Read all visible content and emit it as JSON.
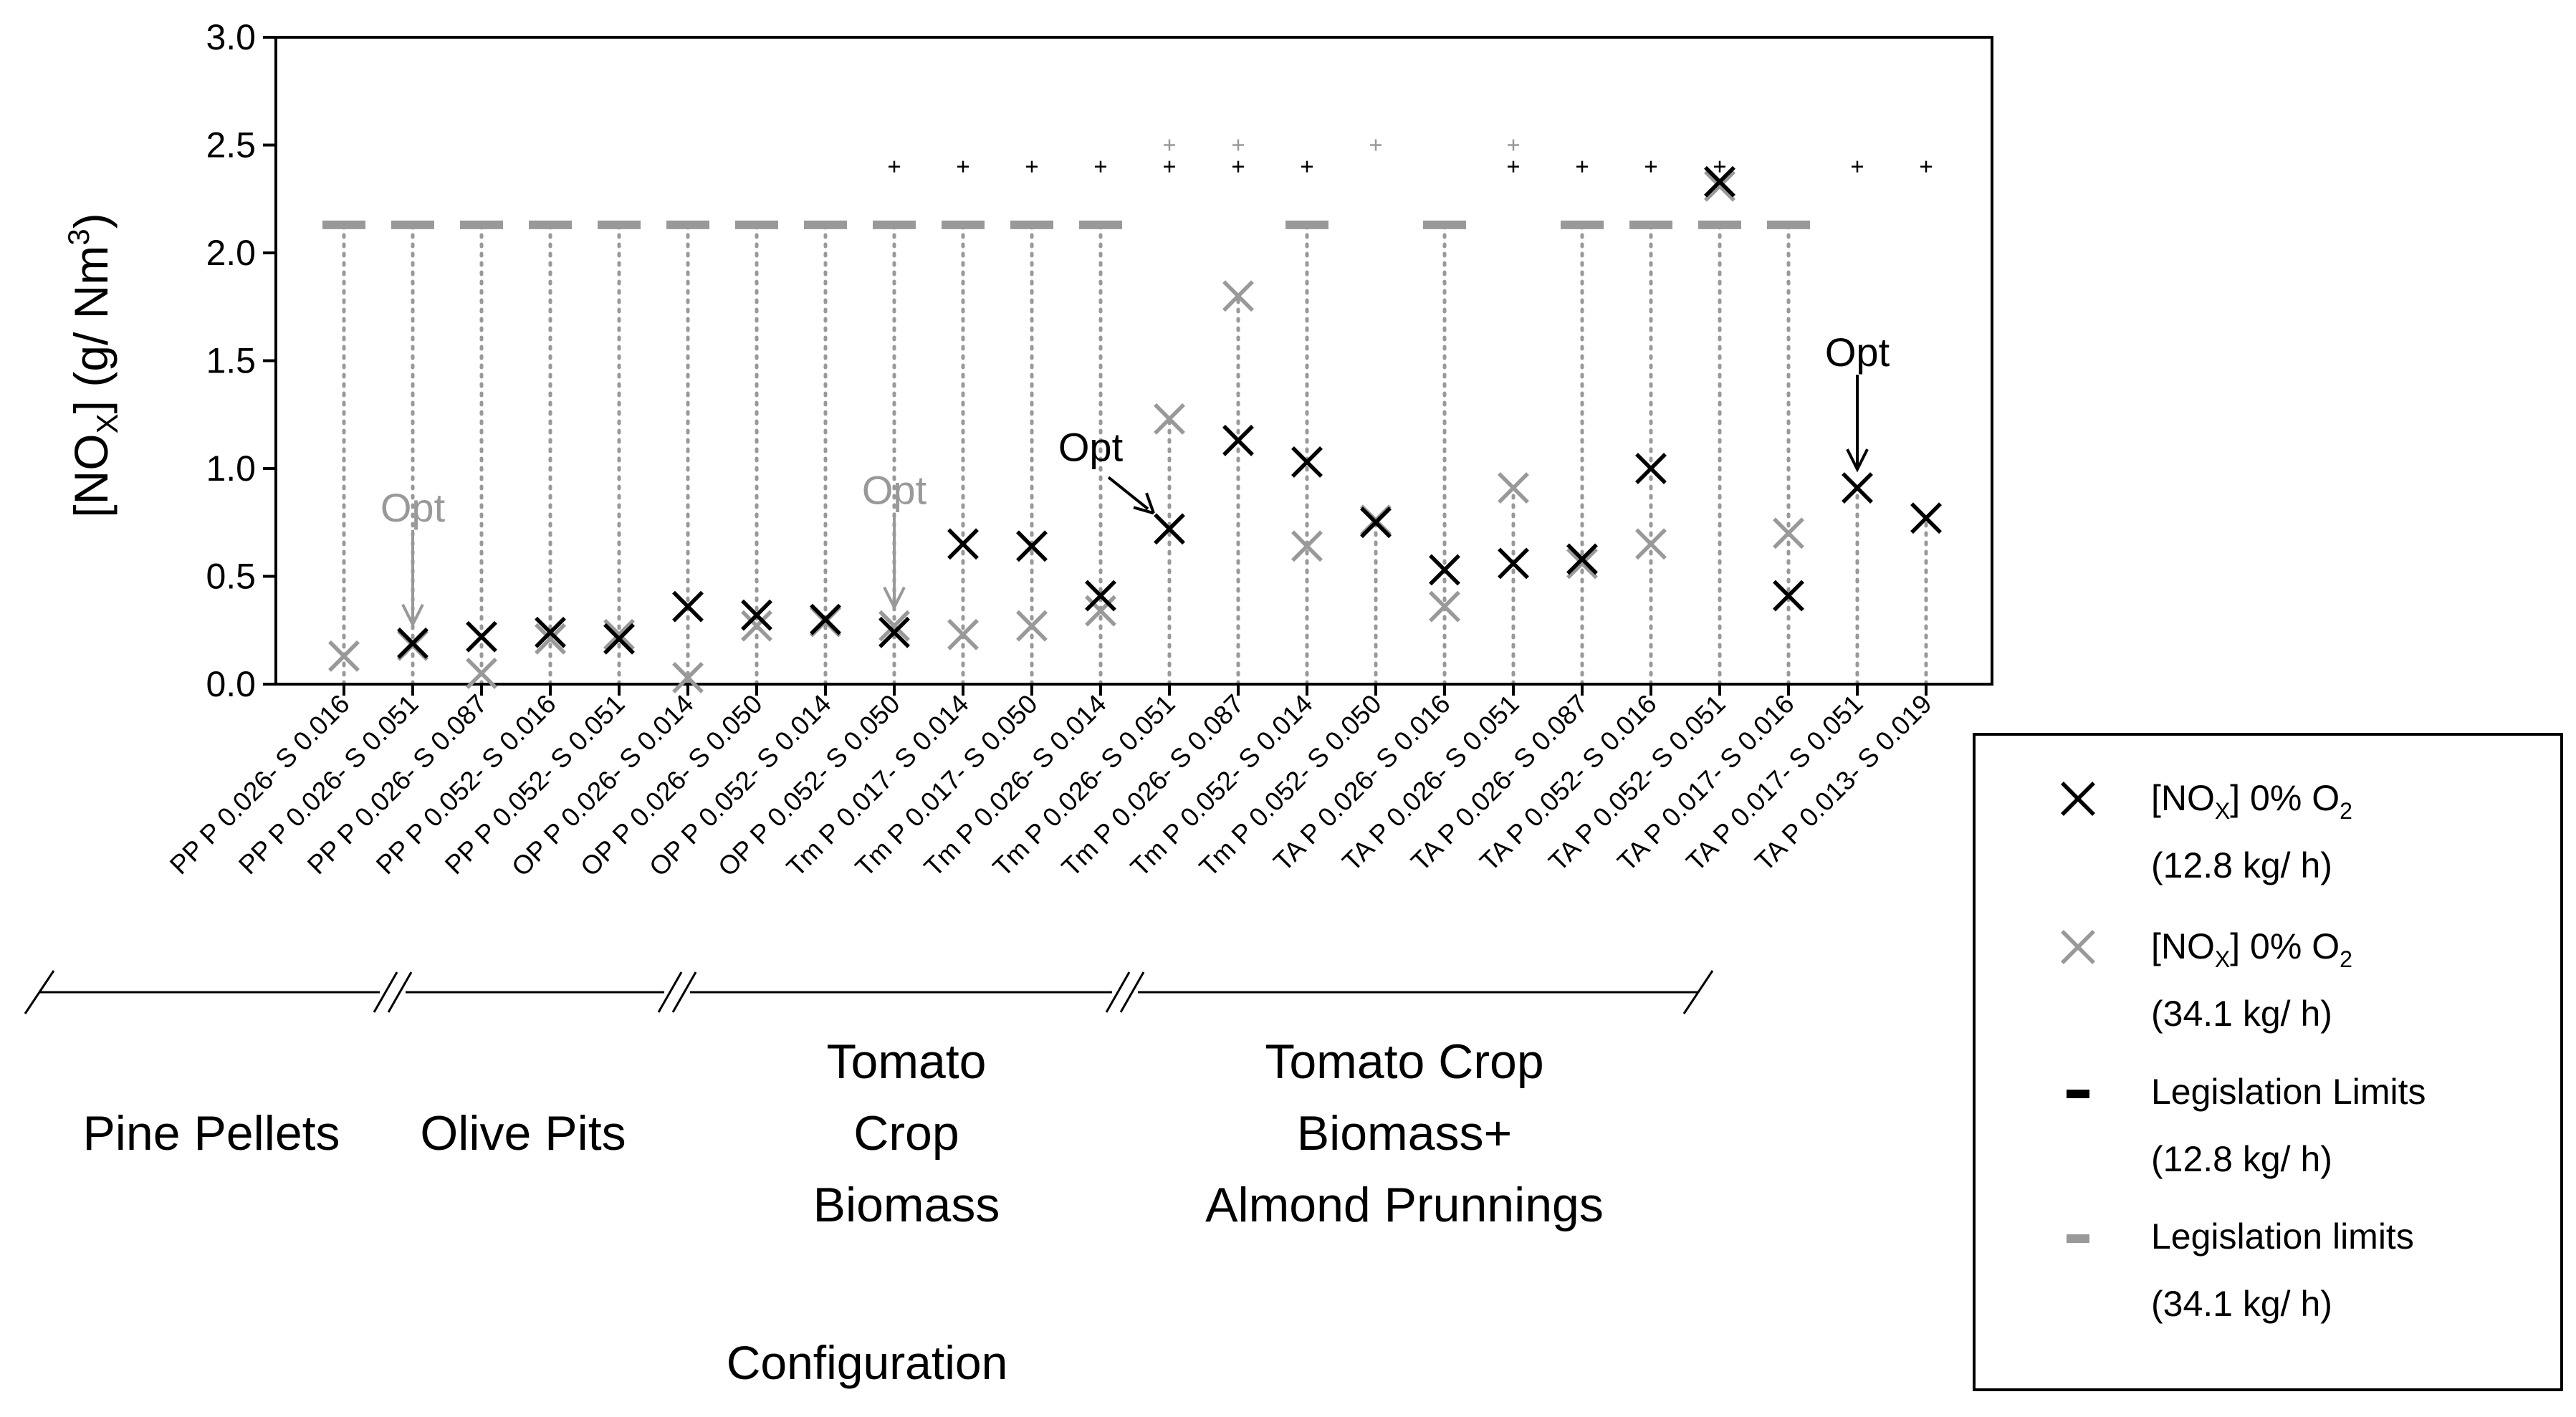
{
  "chart_data": {
    "type": "scatter",
    "ylabel_parts": {
      "main": "[NO",
      "sub": "X",
      "mid": "] (g/ Nm",
      "sup": "3",
      "end": ")"
    },
    "xlabel": "Configuration",
    "ylim": [
      0,
      3
    ],
    "yticks": [
      "0.0",
      "0.5",
      "1.0",
      "1.5",
      "2.0",
      "2.5",
      "3.0"
    ],
    "categories": [
      "PP P 0.026- S 0.016",
      "PP P 0.026- S 0.051",
      "PP P 0.026- S 0.087",
      "PP P 0.052- S 0.016",
      "PP P 0.052- S 0.051",
      "OP P 0.026- S 0.014",
      "OP P 0.026- S 0.050",
      "OP P 0.052- S 0.014",
      "OP P 0.052- S 0.050",
      "Tm P 0.017- S 0.014",
      "Tm P 0.017- S 0.050",
      "Tm P 0.026- S 0.014",
      "Tm P 0.026- S 0.051",
      "Tm P 0.026- S 0.087",
      "Tm P 0.052- S 0.014",
      "Tm P 0.052- S 0.050",
      "TA P 0.026- S 0.016",
      "TA P 0.026- S 0.051",
      "TA P 0.026- S 0.087",
      "TA P 0.052- S 0.016",
      "TA P 0.052- S 0.051",
      "TA P 0.017- S 0.016",
      "TA P 0.017- S 0.051",
      "TA P 0.013- S 0.019"
    ],
    "series": [
      {
        "name": "[NOX] 0% O2 (12.8 kg/ h)",
        "color": "#000000",
        "values": [
          null,
          0.19,
          0.22,
          0.24,
          0.21,
          0.36,
          0.32,
          0.3,
          0.24,
          0.65,
          0.64,
          0.41,
          0.72,
          1.13,
          1.03,
          0.75,
          0.53,
          0.56,
          0.58,
          1.0,
          2.33,
          0.41,
          0.91,
          0.77
        ]
      },
      {
        "name": "[NOX] 0% O2 (34.1 kg/ h)",
        "color": "#999999",
        "values": [
          0.13,
          0.18,
          0.05,
          0.21,
          0.23,
          0.03,
          0.27,
          0.29,
          0.27,
          0.23,
          0.27,
          0.34,
          1.23,
          1.8,
          0.64,
          0.76,
          0.36,
          0.91,
          0.56,
          0.65,
          2.31,
          0.7,
          null,
          null
        ]
      }
    ],
    "legislation_limits": [
      {
        "name": "Legislation Limits (12.8 kg/ h)",
        "color": "#000000",
        "values": [
          null,
          null,
          null,
          null,
          null,
          null,
          null,
          null,
          2.4,
          2.4,
          2.4,
          2.4,
          2.4,
          2.4,
          2.4,
          null,
          null,
          2.4,
          2.4,
          2.4,
          2.4,
          null,
          2.4,
          2.4
        ]
      },
      {
        "name": "Legislation limits (34.1 kg/ h)",
        "color": "#999999",
        "values": [
          2.13,
          2.13,
          2.13,
          2.13,
          2.13,
          2.13,
          2.13,
          2.13,
          2.13,
          2.13,
          2.13,
          2.13,
          2.5,
          2.5,
          2.13,
          2.5,
          2.13,
          2.5,
          2.13,
          2.13,
          2.13,
          2.13,
          null,
          null
        ]
      }
    ],
    "annotations": [
      {
        "text": "Opt",
        "category_index": 1,
        "value": 0.19,
        "color": "#999999"
      },
      {
        "text": "Opt",
        "category_index": 8,
        "value": 0.27,
        "color": "#999999"
      },
      {
        "text": "Opt",
        "category_index": 12,
        "value": 0.72,
        "color": "#000000"
      },
      {
        "text": "Opt",
        "category_index": 22,
        "value": 0.91,
        "color": "#000000"
      }
    ],
    "groups": [
      {
        "lines": [
          "Pine Pellets"
        ],
        "from": 0,
        "to": 4
      },
      {
        "lines": [
          "Olive Pits"
        ],
        "from": 5,
        "to": 8
      },
      {
        "lines": [
          "Tomato",
          "Crop",
          "Biomass"
        ],
        "from": 9,
        "to": 12
      },
      {
        "lines": [
          "Tomato Crop",
          "Biomass+",
          "Almond Prunnings"
        ],
        "from": 13,
        "to": 23
      }
    ],
    "legend": [
      {
        "marker": "x",
        "color": "#000000",
        "label_main": "[NO",
        "label_sub": "X",
        "label_mid": "] 0% O",
        "label_sub2": "2",
        "label_line2": "(12.8 kg/ h)"
      },
      {
        "marker": "x",
        "color": "#999999",
        "label_main": "[NO",
        "label_sub": "X",
        "label_mid": "] 0% O",
        "label_sub2": "2",
        "label_line2": "(34.1 kg/ h)"
      },
      {
        "marker": "dash",
        "color": "#000000",
        "label_main": "Legislation Limits",
        "label_line2": "(12.8 kg/ h)"
      },
      {
        "marker": "dash",
        "color": "#999999",
        "label_main": "Legislation limits",
        "label_line2": "(34.1 kg/ h)"
      }
    ]
  }
}
